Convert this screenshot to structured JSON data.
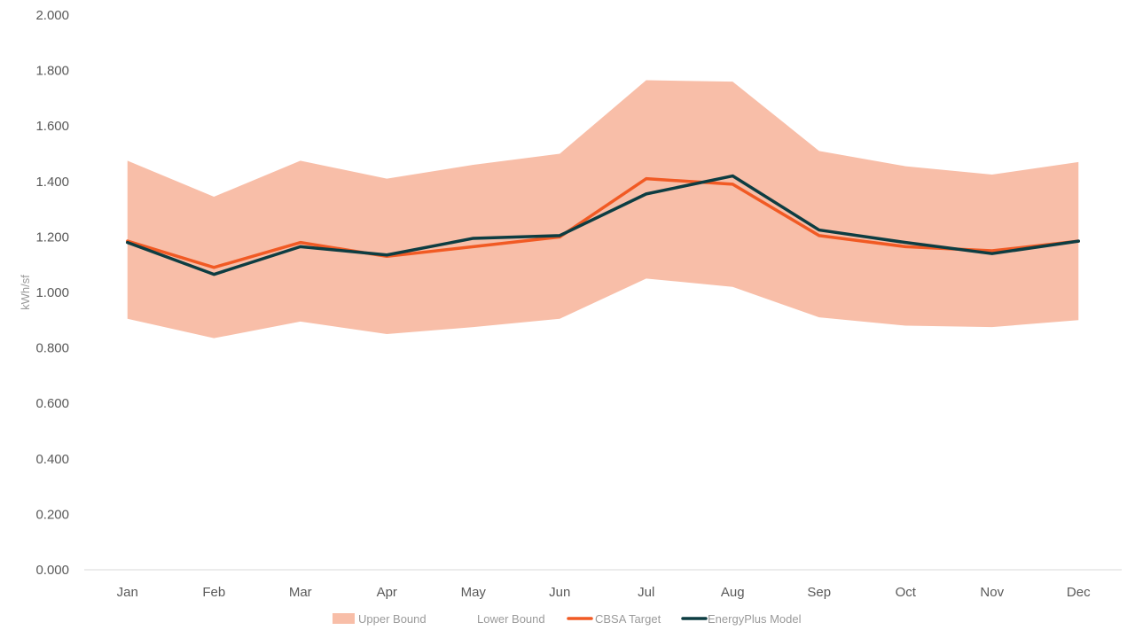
{
  "chart_data": {
    "type": "area",
    "categories": [
      "Jan",
      "Feb",
      "Mar",
      "Apr",
      "May",
      "Jun",
      "Jul",
      "Aug",
      "Sep",
      "Oct",
      "Nov",
      "Dec"
    ],
    "ylabel": "kWh/sf",
    "ylim": [
      0,
      2.0
    ],
    "yticks": [
      "0.000",
      "0.200",
      "0.400",
      "0.600",
      "0.800",
      "1.000",
      "1.200",
      "1.400",
      "1.600",
      "1.800",
      "2.000"
    ],
    "grid": false,
    "legend_position": "bottom",
    "series": [
      {
        "name": "Upper Bound",
        "kind": "band-upper",
        "color": "#F8BEA8",
        "values": [
          1.475,
          1.345,
          1.475,
          1.41,
          1.46,
          1.5,
          1.765,
          1.76,
          1.51,
          1.455,
          1.425,
          1.47
        ]
      },
      {
        "name": "Lower Bound",
        "kind": "band-lower",
        "color": "#FFFFFF",
        "values": [
          0.905,
          0.835,
          0.895,
          0.85,
          0.875,
          0.905,
          1.05,
          1.02,
          0.91,
          0.88,
          0.875,
          0.9
        ]
      },
      {
        "name": "CBSA Target",
        "kind": "line",
        "color": "#F15A24",
        "values": [
          1.185,
          1.09,
          1.18,
          1.13,
          1.165,
          1.2,
          1.41,
          1.39,
          1.205,
          1.165,
          1.15,
          1.185
        ]
      },
      {
        "name": "EnergyPlus Model",
        "kind": "line",
        "color": "#0D3D42",
        "values": [
          1.18,
          1.065,
          1.165,
          1.135,
          1.195,
          1.205,
          1.355,
          1.42,
          1.225,
          1.18,
          1.14,
          1.185
        ]
      }
    ]
  }
}
